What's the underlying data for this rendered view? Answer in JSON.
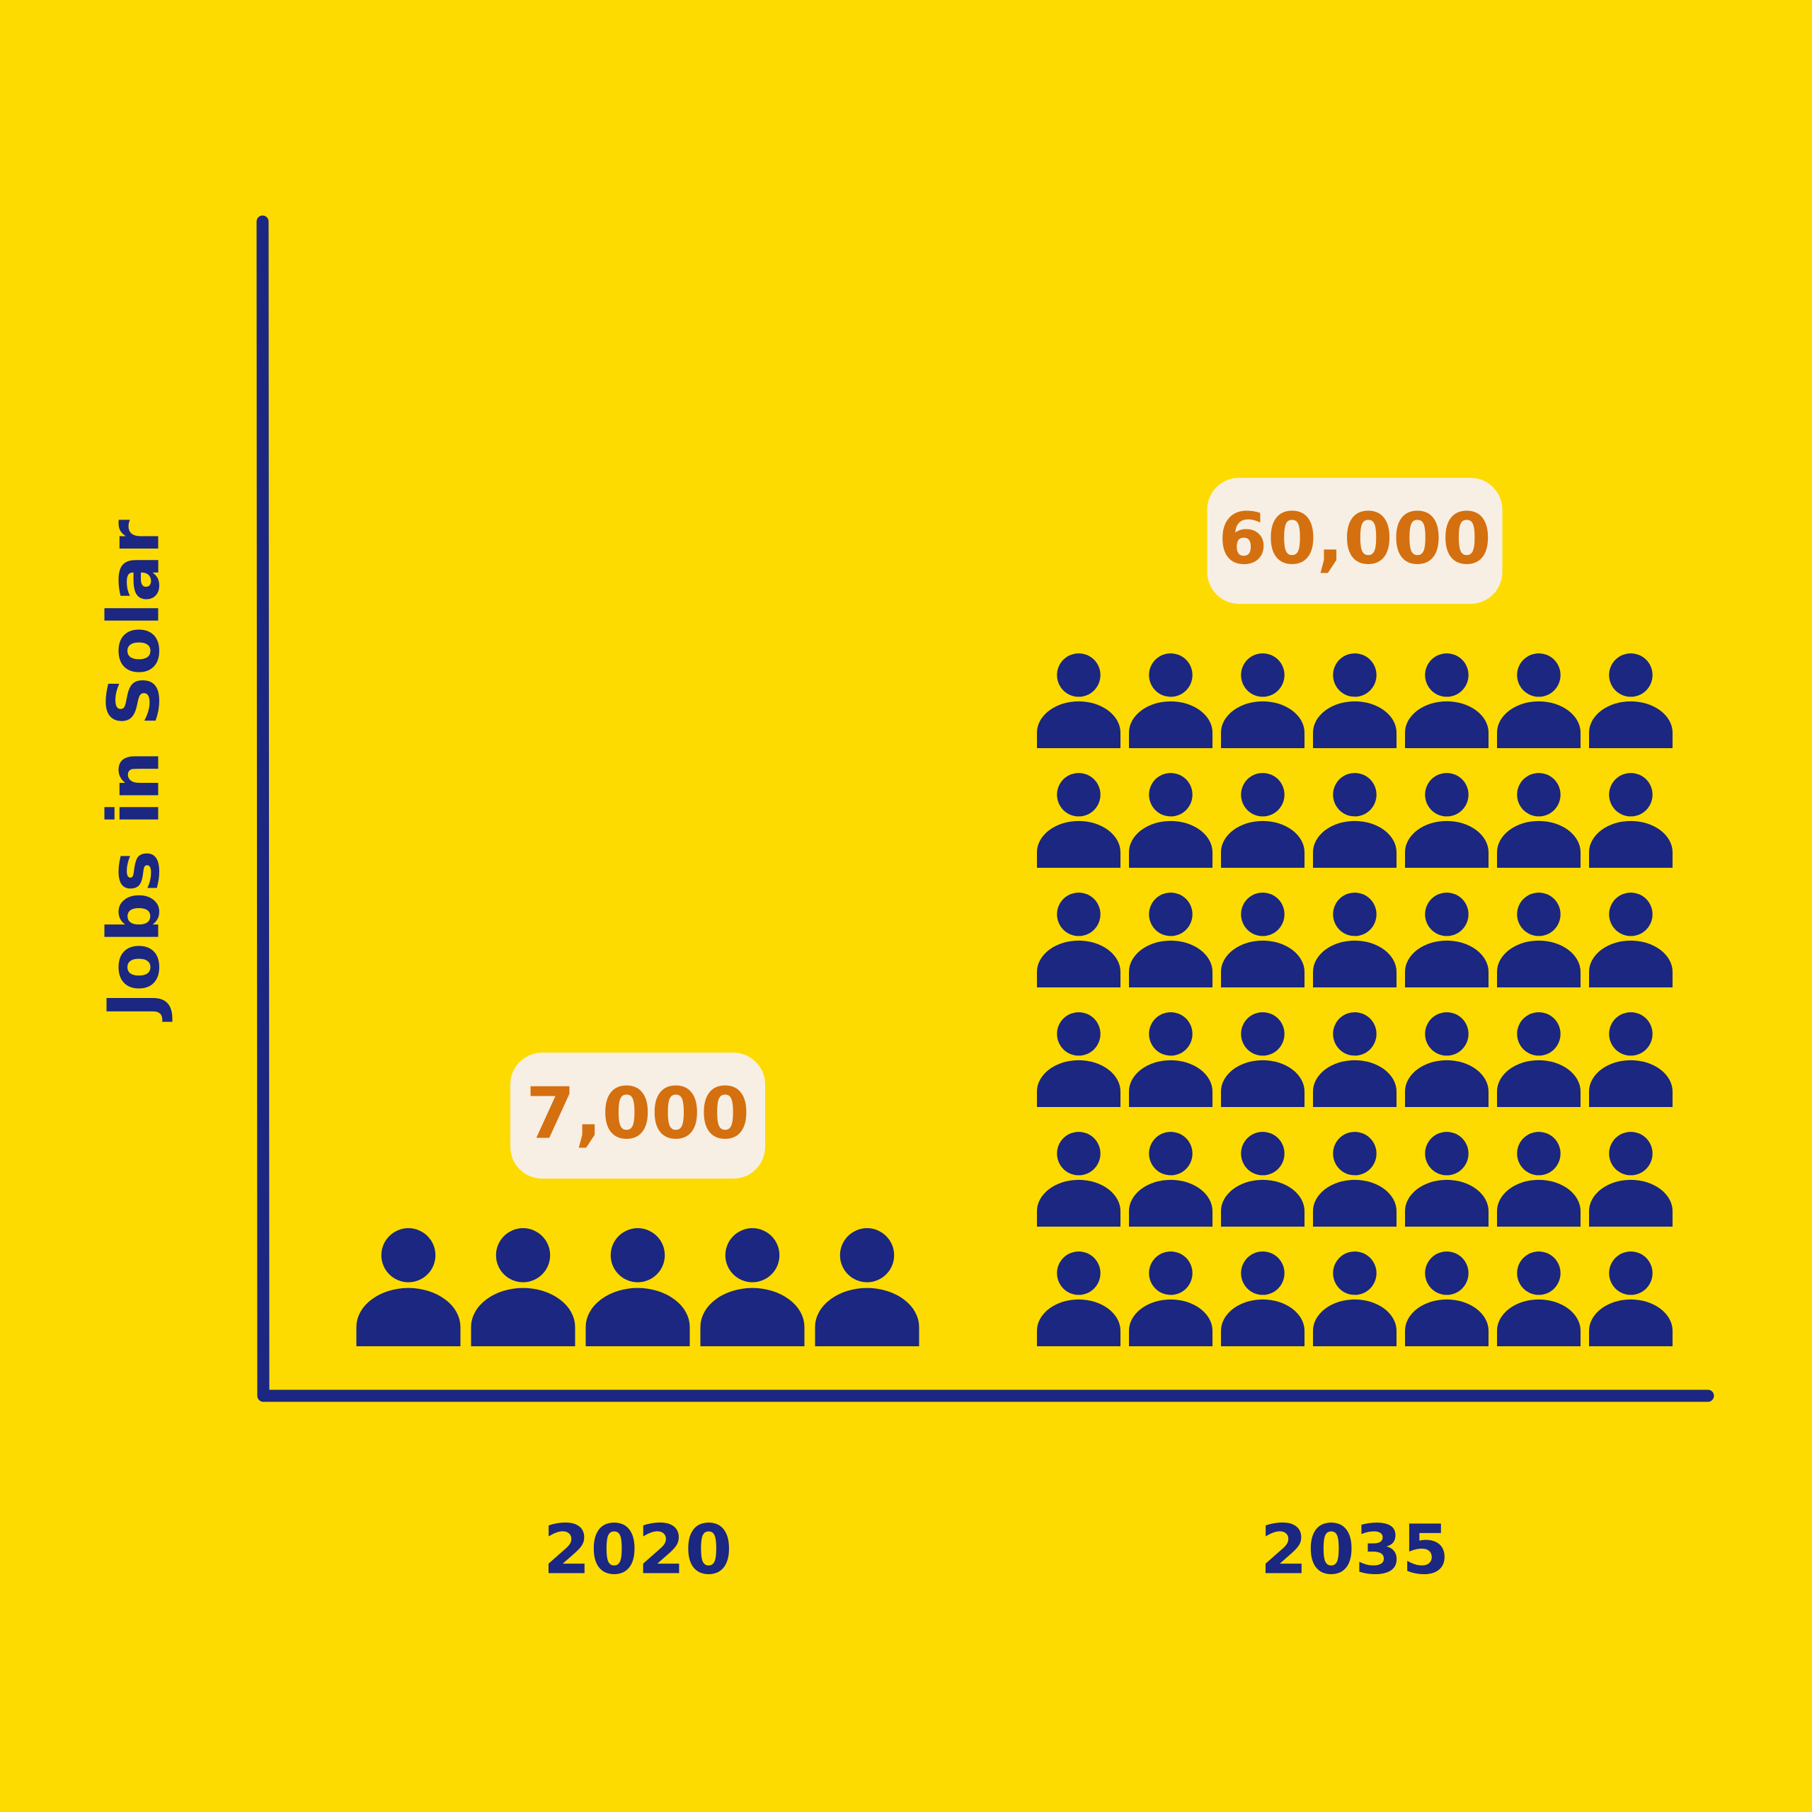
{
  "chart_data": {
    "type": "pictogram",
    "y_label": "Jobs in Solar",
    "categories": [
      "2020",
      "2035"
    ],
    "values": [
      7000,
      60000
    ],
    "value_labels": [
      "7,000",
      "60,000"
    ],
    "color": "#1b2780",
    "label_color": "#d4700f",
    "background": "#fedb00"
  }
}
